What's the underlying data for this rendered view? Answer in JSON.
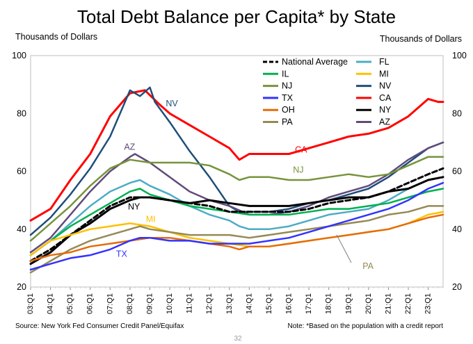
{
  "chart_data": {
    "type": "line",
    "title": "Total Debt Balance per Capita* by State",
    "ylabel_left": "Thousands of Dollars",
    "ylabel_right": "Thousands of Dollars",
    "ylim": [
      20,
      100
    ],
    "yticks": [
      20,
      40,
      60,
      80,
      100
    ],
    "x_ticks": [
      "03:Q1",
      "04:Q1",
      "05:Q1",
      "06:Q1",
      "07:Q1",
      "08:Q1",
      "09:Q1",
      "10:Q1",
      "11:Q1",
      "12:Q1",
      "13:Q1",
      "14:Q1",
      "15:Q1",
      "16:Q1",
      "17:Q1",
      "18:Q1",
      "19:Q1",
      "20:Q1",
      "21:Q1",
      "22:Q1",
      "23:Q1"
    ],
    "x_start_year": 2003,
    "x_end": 2023.75,
    "source": "Source: New York Fed Consumer Credit Panel/Equifax",
    "note": "Note:  *Based on the population with a credit report",
    "page_number": "32",
    "series": [
      {
        "key": "CA",
        "name": "CA",
        "color": "#ff0000",
        "width": 3,
        "legend": true,
        "label": "CA",
        "points": [
          [
            2003,
            43
          ],
          [
            2004,
            47
          ],
          [
            2005,
            57
          ],
          [
            2006,
            66
          ],
          [
            2007,
            79
          ],
          [
            2008,
            87
          ],
          [
            2008.75,
            88
          ],
          [
            2009.5,
            83
          ],
          [
            2010,
            80
          ],
          [
            2011,
            76
          ],
          [
            2012,
            72
          ],
          [
            2013,
            68
          ],
          [
            2013.5,
            64
          ],
          [
            2014,
            66
          ],
          [
            2015,
            66
          ],
          [
            2016,
            66
          ],
          [
            2017,
            68
          ],
          [
            2018,
            70
          ],
          [
            2019,
            72
          ],
          [
            2020,
            73
          ],
          [
            2021,
            75
          ],
          [
            2022,
            79
          ],
          [
            2023,
            85
          ],
          [
            2023.5,
            84
          ],
          [
            2023.75,
            84
          ]
        ]
      },
      {
        "key": "NV",
        "name": "NV",
        "color": "#1f4e79",
        "width": 2.5,
        "legend": true,
        "label": "NV",
        "points": [
          [
            2003,
            38
          ],
          [
            2004,
            44
          ],
          [
            2005,
            52
          ],
          [
            2006,
            61
          ],
          [
            2007,
            72
          ],
          [
            2007.5,
            80
          ],
          [
            2008,
            88
          ],
          [
            2008.5,
            86
          ],
          [
            2009,
            89
          ],
          [
            2009.25,
            84
          ],
          [
            2010,
            77
          ],
          [
            2011,
            67
          ],
          [
            2012,
            58
          ],
          [
            2012.5,
            53
          ],
          [
            2013,
            48
          ],
          [
            2013.5,
            46
          ],
          [
            2014,
            46
          ],
          [
            2015,
            46
          ],
          [
            2016,
            47
          ],
          [
            2017,
            49
          ],
          [
            2018,
            50
          ],
          [
            2019,
            52
          ],
          [
            2020,
            54
          ],
          [
            2021,
            58
          ],
          [
            2022,
            63
          ],
          [
            2023,
            68
          ],
          [
            2023.75,
            70
          ]
        ]
      },
      {
        "key": "AZ",
        "name": "AZ",
        "color": "#604a7b",
        "width": 2.5,
        "legend": true,
        "label": "AZ",
        "points": [
          [
            2003,
            32
          ],
          [
            2004,
            37
          ],
          [
            2005,
            45
          ],
          [
            2006,
            53
          ],
          [
            2007,
            60
          ],
          [
            2008,
            65
          ],
          [
            2008.25,
            66
          ],
          [
            2009,
            63
          ],
          [
            2010,
            58
          ],
          [
            2011,
            53
          ],
          [
            2012,
            50
          ],
          [
            2013,
            48
          ],
          [
            2014,
            45
          ],
          [
            2015,
            45
          ],
          [
            2016,
            46
          ],
          [
            2017,
            48
          ],
          [
            2018,
            51
          ],
          [
            2019,
            53
          ],
          [
            2020,
            55
          ],
          [
            2021,
            59
          ],
          [
            2022,
            64
          ],
          [
            2023,
            68
          ],
          [
            2023.75,
            70
          ]
        ]
      },
      {
        "key": "NJ",
        "name": "NJ",
        "color": "#77933c",
        "width": 2.5,
        "legend": true,
        "label": "NJ",
        "points": [
          [
            2003,
            36
          ],
          [
            2004,
            42
          ],
          [
            2005,
            48
          ],
          [
            2006,
            55
          ],
          [
            2007,
            61
          ],
          [
            2008,
            64
          ],
          [
            2009,
            63
          ],
          [
            2010,
            63
          ],
          [
            2011,
            63
          ],
          [
            2012,
            62
          ],
          [
            2013,
            59
          ],
          [
            2013.5,
            57
          ],
          [
            2014,
            58
          ],
          [
            2015,
            58
          ],
          [
            2016,
            57
          ],
          [
            2017,
            57
          ],
          [
            2018,
            58
          ],
          [
            2019,
            59
          ],
          [
            2020,
            58
          ],
          [
            2021,
            59
          ],
          [
            2022,
            62
          ],
          [
            2023,
            65
          ],
          [
            2023.75,
            65
          ]
        ]
      },
      {
        "key": "FL",
        "name": "FL",
        "color": "#4bacc6",
        "width": 2.5,
        "legend": true,
        "label": "",
        "points": [
          [
            2003,
            31
          ],
          [
            2004,
            36
          ],
          [
            2005,
            42
          ],
          [
            2006,
            48
          ],
          [
            2007,
            53
          ],
          [
            2008,
            56
          ],
          [
            2008.5,
            57
          ],
          [
            2009,
            55
          ],
          [
            2010,
            52
          ],
          [
            2011,
            48
          ],
          [
            2012,
            45
          ],
          [
            2013,
            43
          ],
          [
            2013.5,
            41
          ],
          [
            2014,
            40
          ],
          [
            2015,
            40
          ],
          [
            2016,
            41
          ],
          [
            2017,
            43
          ],
          [
            2018,
            45
          ],
          [
            2019,
            46
          ],
          [
            2020,
            47
          ],
          [
            2021,
            50
          ],
          [
            2022,
            54
          ],
          [
            2023,
            57
          ],
          [
            2023.75,
            58
          ]
        ]
      },
      {
        "key": "IL",
        "name": "IL",
        "color": "#00b050",
        "width": 2.5,
        "legend": true,
        "label": "",
        "points": [
          [
            2003,
            31
          ],
          [
            2004,
            36
          ],
          [
            2005,
            41
          ],
          [
            2006,
            45
          ],
          [
            2007,
            49
          ],
          [
            2008,
            53
          ],
          [
            2008.5,
            54
          ],
          [
            2009,
            52
          ],
          [
            2010,
            50
          ],
          [
            2011,
            48
          ],
          [
            2012,
            47
          ],
          [
            2013,
            46
          ],
          [
            2014,
            45
          ],
          [
            2015,
            45
          ],
          [
            2016,
            45
          ],
          [
            2017,
            46
          ],
          [
            2018,
            47
          ],
          [
            2019,
            47
          ],
          [
            2020,
            48
          ],
          [
            2021,
            49
          ],
          [
            2022,
            51
          ],
          [
            2023,
            53
          ],
          [
            2023.75,
            54
          ]
        ]
      },
      {
        "key": "NAT",
        "name": "National Average",
        "color": "#000000",
        "width": 3,
        "dash": "7,4",
        "legend": true,
        "label": "",
        "points": [
          [
            2003,
            29
          ],
          [
            2004,
            33
          ],
          [
            2005,
            38
          ],
          [
            2006,
            43
          ],
          [
            2007,
            48
          ],
          [
            2008,
            51
          ],
          [
            2009,
            51
          ],
          [
            2010,
            50
          ],
          [
            2011,
            49
          ],
          [
            2012,
            48
          ],
          [
            2013,
            46
          ],
          [
            2014,
            46
          ],
          [
            2015,
            46
          ],
          [
            2016,
            46
          ],
          [
            2017,
            47
          ],
          [
            2018,
            49
          ],
          [
            2019,
            50
          ],
          [
            2020,
            51
          ],
          [
            2021,
            53
          ],
          [
            2022,
            56
          ],
          [
            2023,
            59
          ],
          [
            2023.75,
            61
          ]
        ]
      },
      {
        "key": "NY",
        "name": "NY",
        "color": "#000000",
        "width": 3,
        "legend": true,
        "label": "NY",
        "points": [
          [
            2003,
            28
          ],
          [
            2004,
            32
          ],
          [
            2005,
            38
          ],
          [
            2006,
            42
          ],
          [
            2007,
            47
          ],
          [
            2008,
            50
          ],
          [
            2008.5,
            51
          ],
          [
            2009,
            51
          ],
          [
            2010,
            50
          ],
          [
            2011,
            49
          ],
          [
            2012,
            50
          ],
          [
            2013,
            49
          ],
          [
            2014,
            48
          ],
          [
            2015,
            48
          ],
          [
            2016,
            48
          ],
          [
            2017,
            49
          ],
          [
            2018,
            50
          ],
          [
            2019,
            51
          ],
          [
            2020,
            51
          ],
          [
            2021,
            53
          ],
          [
            2022,
            54
          ],
          [
            2023,
            57
          ],
          [
            2023.75,
            58
          ]
        ]
      },
      {
        "key": "MI",
        "name": "MI",
        "color": "#ffc000",
        "width": 2.5,
        "legend": true,
        "label": "MI",
        "points": [
          [
            2003,
            31
          ],
          [
            2004,
            36
          ],
          [
            2005,
            38
          ],
          [
            2006,
            40
          ],
          [
            2007,
            41
          ],
          [
            2008,
            42
          ],
          [
            2009,
            41
          ],
          [
            2010,
            39
          ],
          [
            2011,
            37
          ],
          [
            2012,
            36
          ],
          [
            2013,
            35
          ],
          [
            2014,
            34
          ],
          [
            2015,
            34
          ],
          [
            2016,
            35
          ],
          [
            2017,
            36
          ],
          [
            2018,
            37
          ],
          [
            2019,
            38
          ],
          [
            2020,
            39
          ],
          [
            2021,
            40
          ],
          [
            2022,
            42
          ],
          [
            2023,
            45
          ],
          [
            2023.75,
            46
          ]
        ]
      },
      {
        "key": "PA",
        "name": "PA",
        "color": "#948a54",
        "width": 2.5,
        "legend": true,
        "label": "PA",
        "points": [
          [
            2003,
            25
          ],
          [
            2004,
            29
          ],
          [
            2005,
            33
          ],
          [
            2006,
            36
          ],
          [
            2007,
            38
          ],
          [
            2008,
            40
          ],
          [
            2008.5,
            41
          ],
          [
            2009,
            40
          ],
          [
            2010,
            39
          ],
          [
            2011,
            38
          ],
          [
            2012,
            38
          ],
          [
            2013,
            38
          ],
          [
            2014,
            37
          ],
          [
            2015,
            38
          ],
          [
            2016,
            39
          ],
          [
            2017,
            40
          ],
          [
            2018,
            41
          ],
          [
            2019,
            42
          ],
          [
            2020,
            43
          ],
          [
            2021,
            45
          ],
          [
            2022,
            46
          ],
          [
            2023,
            48
          ],
          [
            2023.75,
            48
          ]
        ]
      },
      {
        "key": "OH",
        "name": "OH",
        "color": "#e46c0a",
        "width": 2.5,
        "legend": true,
        "label": "",
        "points": [
          [
            2003,
            29
          ],
          [
            2004,
            31
          ],
          [
            2005,
            32
          ],
          [
            2006,
            34
          ],
          [
            2007,
            35
          ],
          [
            2008,
            36
          ],
          [
            2009,
            37
          ],
          [
            2010,
            37
          ],
          [
            2011,
            36
          ],
          [
            2012,
            35
          ],
          [
            2013,
            34
          ],
          [
            2013.5,
            33
          ],
          [
            2014,
            34
          ],
          [
            2015,
            34
          ],
          [
            2016,
            35
          ],
          [
            2017,
            36
          ],
          [
            2018,
            37
          ],
          [
            2019,
            38
          ],
          [
            2020,
            39
          ],
          [
            2021,
            40
          ],
          [
            2022,
            42
          ],
          [
            2023,
            44
          ],
          [
            2023.75,
            45
          ]
        ]
      },
      {
        "key": "TX",
        "name": "TX",
        "color": "#3333ff",
        "width": 2.5,
        "legend": true,
        "label": "TX",
        "points": [
          [
            2003,
            26
          ],
          [
            2004,
            28
          ],
          [
            2005,
            30
          ],
          [
            2006,
            31
          ],
          [
            2007,
            33
          ],
          [
            2008,
            36
          ],
          [
            2008.5,
            37
          ],
          [
            2009,
            37
          ],
          [
            2010,
            36
          ],
          [
            2011,
            36
          ],
          [
            2012,
            35
          ],
          [
            2013,
            35
          ],
          [
            2014,
            35
          ],
          [
            2015,
            36
          ],
          [
            2016,
            37
          ],
          [
            2017,
            39
          ],
          [
            2018,
            41
          ],
          [
            2019,
            43
          ],
          [
            2020,
            45
          ],
          [
            2021,
            47
          ],
          [
            2022,
            50
          ],
          [
            2023,
            54
          ],
          [
            2023.75,
            56
          ]
        ]
      }
    ],
    "legend_left": [
      "NAT",
      "IL",
      "NJ",
      "TX",
      "OH",
      "PA"
    ],
    "legend_right": [
      "FL",
      "MI",
      "NV",
      "CA",
      "NY",
      "AZ"
    ]
  }
}
